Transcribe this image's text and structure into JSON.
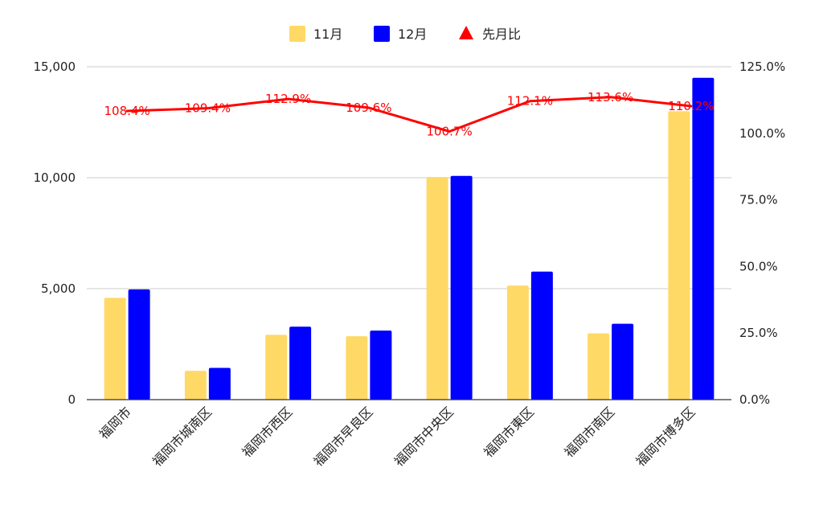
{
  "chart_data": {
    "type": "bar",
    "categories": [
      "福岡市",
      "福岡市城南区",
      "福岡市西区",
      "福岡市早良区",
      "福岡市中央区",
      "福岡市東区",
      "福岡市南区",
      "福岡市博多区"
    ],
    "series": [
      {
        "name": "11月",
        "kind": "bar",
        "axis": "left",
        "color": "#FFD966",
        "values": [
          4590,
          1300,
          2920,
          2860,
          10030,
          5140,
          2990,
          13000
        ]
      },
      {
        "name": "12月",
        "kind": "bar",
        "axis": "left",
        "color": "#0000FF",
        "values": [
          4970,
          1430,
          3290,
          3110,
          10080,
          5770,
          3420,
          14500
        ]
      },
      {
        "name": "先月比",
        "kind": "line",
        "axis": "right",
        "color": "#FF0000",
        "values": [
          108.4,
          109.4,
          112.9,
          109.6,
          100.7,
          112.1,
          113.6,
          110.2
        ],
        "data_labels": [
          "108.4%",
          "109.4%",
          "112.9%",
          "109.6%",
          "100.7%",
          "112.1%",
          "113.6%",
          "110.2%"
        ]
      }
    ],
    "left_axis": {
      "min": 0,
      "max": 15000,
      "ticks": [
        0,
        5000,
        10000,
        15000
      ],
      "tick_labels": [
        "0",
        "5,000",
        "10,000",
        "15,000"
      ]
    },
    "right_axis": {
      "min": 0,
      "max": 125,
      "ticks": [
        0,
        25,
        50,
        75,
        100,
        125
      ],
      "tick_labels": [
        "0.0%",
        "25.0%",
        "50.0%",
        "75.0%",
        "100.0%",
        "125.0%"
      ]
    },
    "legend_position": "top",
    "grid": true
  }
}
